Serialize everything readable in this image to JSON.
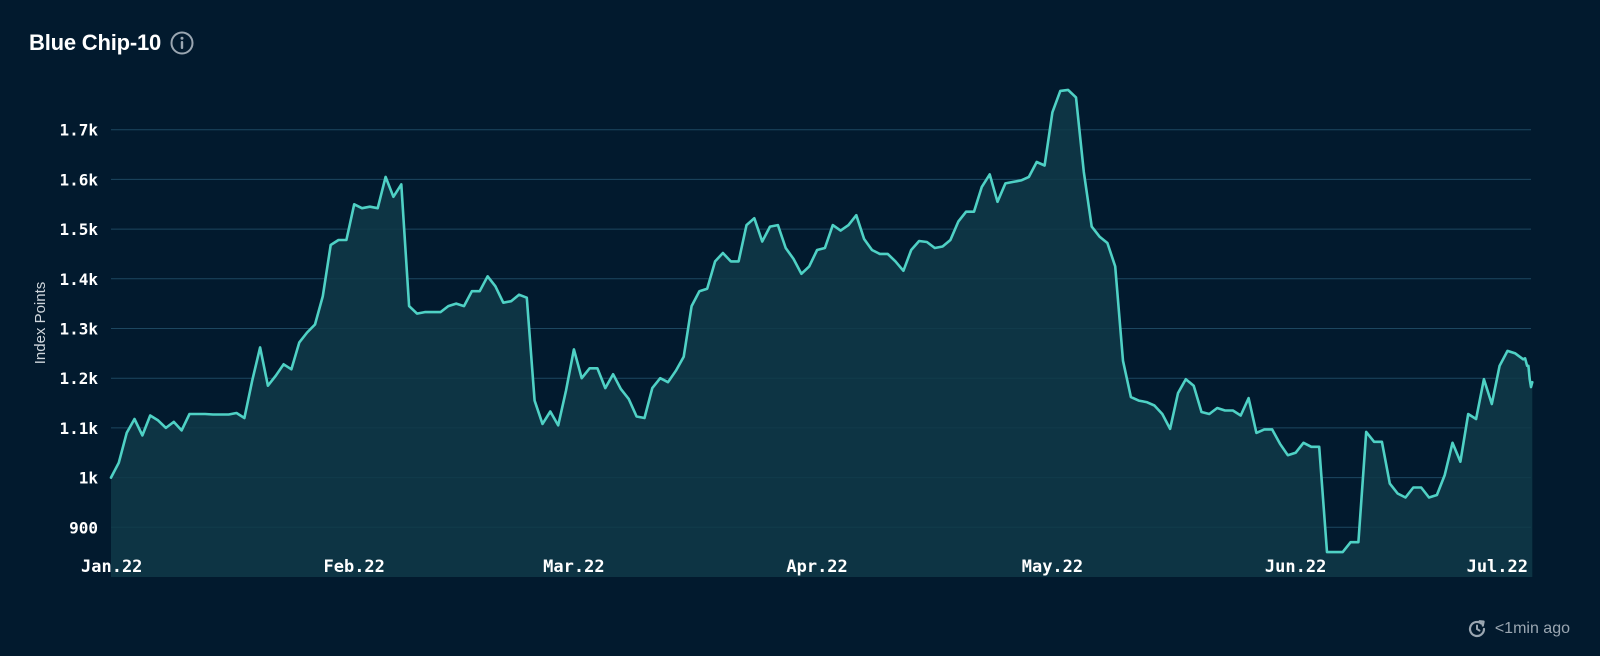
{
  "header": {
    "title": "Blue Chip-10",
    "info_icon": "info-icon"
  },
  "footer": {
    "refresh_icon": "refresh-icon",
    "updated": "<1min ago"
  },
  "colors": {
    "background": "#021a2e",
    "line": "#4fd1c5",
    "area": "#0f3a48",
    "grid": "#1d4760"
  },
  "chart_data": {
    "type": "area",
    "title": "Blue Chip-10",
    "xlabel": "",
    "ylabel": "Index Points",
    "ylim": [
      800,
      1800
    ],
    "yticks": [
      900,
      1000,
      1100,
      1200,
      1300,
      1400,
      1500,
      1600,
      1700
    ],
    "ytick_labels": [
      "900",
      "1k",
      "1.1k",
      "1.2k",
      "1.3k",
      "1.4k",
      "1.5k",
      "1.6k",
      "1.7k"
    ],
    "xlim": [
      "2022-01-01",
      "2022-07-01"
    ],
    "xticks": [
      "2022-01-01",
      "2022-02-01",
      "2022-03-01",
      "2022-04-01",
      "2022-05-01",
      "2022-06-01",
      "2022-07-01"
    ],
    "xtick_labels": [
      "Jan.22",
      "Feb.22",
      "Mar.22",
      "Apr.22",
      "May.22",
      "Jun.22",
      "Jul.22"
    ],
    "grid": true,
    "series": [
      {
        "values": [
          [
            "2022-01-01",
            1000
          ],
          [
            "2022-01-02",
            1030
          ],
          [
            "2022-01-03",
            1090
          ],
          [
            "2022-01-04",
            1118
          ],
          [
            "2022-01-05",
            1085
          ],
          [
            "2022-01-06",
            1125
          ],
          [
            "2022-01-07",
            1115
          ],
          [
            "2022-01-08",
            1100
          ],
          [
            "2022-01-09",
            1112
          ],
          [
            "2022-01-10",
            1095
          ],
          [
            "2022-01-11",
            1128
          ],
          [
            "2022-01-12",
            1128
          ],
          [
            "2022-01-13",
            1128
          ],
          [
            "2022-01-14",
            1127
          ],
          [
            "2022-01-15",
            1127
          ],
          [
            "2022-01-16",
            1127
          ],
          [
            "2022-01-17",
            1130
          ],
          [
            "2022-01-18",
            1120
          ],
          [
            "2022-01-19",
            1195
          ],
          [
            "2022-01-20",
            1262
          ],
          [
            "2022-01-21",
            1185
          ],
          [
            "2022-01-22",
            1205
          ],
          [
            "2022-01-23",
            1228
          ],
          [
            "2022-01-24",
            1218
          ],
          [
            "2022-01-25",
            1272
          ],
          [
            "2022-01-26",
            1292
          ],
          [
            "2022-01-27",
            1308
          ],
          [
            "2022-01-28",
            1365
          ],
          [
            "2022-01-29",
            1468
          ],
          [
            "2022-01-30",
            1478
          ],
          [
            "2022-01-31",
            1478
          ],
          [
            "2022-02-01",
            1550
          ],
          [
            "2022-02-02",
            1542
          ],
          [
            "2022-02-03",
            1545
          ],
          [
            "2022-02-04",
            1542
          ],
          [
            "2022-02-05",
            1605
          ],
          [
            "2022-02-06",
            1565
          ],
          [
            "2022-02-07",
            1590
          ],
          [
            "2022-02-08",
            1345
          ],
          [
            "2022-02-09",
            1330
          ],
          [
            "2022-02-10",
            1333
          ],
          [
            "2022-02-11",
            1333
          ],
          [
            "2022-02-12",
            1333
          ],
          [
            "2022-02-13",
            1345
          ],
          [
            "2022-02-14",
            1350
          ],
          [
            "2022-02-15",
            1345
          ],
          [
            "2022-02-16",
            1375
          ],
          [
            "2022-02-17",
            1375
          ],
          [
            "2022-02-18",
            1405
          ],
          [
            "2022-02-19",
            1385
          ],
          [
            "2022-02-20",
            1352
          ],
          [
            "2022-02-21",
            1355
          ],
          [
            "2022-02-22",
            1368
          ],
          [
            "2022-02-23",
            1362
          ],
          [
            "2022-02-24",
            1155
          ],
          [
            "2022-02-25",
            1108
          ],
          [
            "2022-02-26",
            1133
          ],
          [
            "2022-02-27",
            1105
          ],
          [
            "2022-02-28",
            1175
          ],
          [
            "2022-03-01",
            1258
          ],
          [
            "2022-03-02",
            1200
          ],
          [
            "2022-03-03",
            1220
          ],
          [
            "2022-03-04",
            1220
          ],
          [
            "2022-03-05",
            1180
          ],
          [
            "2022-03-06",
            1208
          ],
          [
            "2022-03-07",
            1178
          ],
          [
            "2022-03-08",
            1158
          ],
          [
            "2022-03-09",
            1123
          ],
          [
            "2022-03-10",
            1120
          ],
          [
            "2022-03-11",
            1180
          ],
          [
            "2022-03-12",
            1200
          ],
          [
            "2022-03-13",
            1192
          ],
          [
            "2022-03-14",
            1215
          ],
          [
            "2022-03-15",
            1243
          ],
          [
            "2022-03-16",
            1345
          ],
          [
            "2022-03-17",
            1375
          ],
          [
            "2022-03-18",
            1380
          ],
          [
            "2022-03-19",
            1435
          ],
          [
            "2022-03-20",
            1452
          ],
          [
            "2022-03-21",
            1435
          ],
          [
            "2022-03-22",
            1435
          ],
          [
            "2022-03-23",
            1508
          ],
          [
            "2022-03-24",
            1522
          ],
          [
            "2022-03-25",
            1475
          ],
          [
            "2022-03-26",
            1505
          ],
          [
            "2022-03-27",
            1508
          ],
          [
            "2022-03-28",
            1462
          ],
          [
            "2022-03-29",
            1440
          ],
          [
            "2022-03-30",
            1410
          ],
          [
            "2022-03-31",
            1425
          ],
          [
            "2022-04-01",
            1458
          ],
          [
            "2022-04-02",
            1462
          ],
          [
            "2022-04-03",
            1508
          ],
          [
            "2022-04-04",
            1497
          ],
          [
            "2022-04-05",
            1508
          ],
          [
            "2022-04-06",
            1528
          ],
          [
            "2022-04-07",
            1480
          ],
          [
            "2022-04-08",
            1458
          ],
          [
            "2022-04-09",
            1450
          ],
          [
            "2022-04-10",
            1450
          ],
          [
            "2022-04-11",
            1435
          ],
          [
            "2022-04-12",
            1416
          ],
          [
            "2022-04-13",
            1458
          ],
          [
            "2022-04-14",
            1476
          ],
          [
            "2022-04-15",
            1474
          ],
          [
            "2022-04-16",
            1462
          ],
          [
            "2022-04-17",
            1465
          ],
          [
            "2022-04-18",
            1478
          ],
          [
            "2022-04-19",
            1515
          ],
          [
            "2022-04-20",
            1535
          ],
          [
            "2022-04-21",
            1535
          ],
          [
            "2022-04-22",
            1585
          ],
          [
            "2022-04-23",
            1610
          ],
          [
            "2022-04-24",
            1555
          ],
          [
            "2022-04-25",
            1592
          ],
          [
            "2022-04-26",
            1595
          ],
          [
            "2022-04-27",
            1598
          ],
          [
            "2022-04-28",
            1605
          ],
          [
            "2022-04-29",
            1635
          ],
          [
            "2022-04-30",
            1628
          ],
          [
            "2022-05-01",
            1735
          ],
          [
            "2022-05-02",
            1778
          ],
          [
            "2022-05-03",
            1780
          ],
          [
            "2022-05-04",
            1765
          ],
          [
            "2022-05-05",
            1615
          ],
          [
            "2022-05-06",
            1505
          ],
          [
            "2022-05-07",
            1485
          ],
          [
            "2022-05-08",
            1472
          ],
          [
            "2022-05-09",
            1425
          ],
          [
            "2022-05-10",
            1235
          ],
          [
            "2022-05-11",
            1162
          ],
          [
            "2022-05-12",
            1155
          ],
          [
            "2022-05-13",
            1152
          ],
          [
            "2022-05-14",
            1145
          ],
          [
            "2022-05-15",
            1128
          ],
          [
            "2022-05-16",
            1098
          ],
          [
            "2022-05-17",
            1170
          ],
          [
            "2022-05-18",
            1198
          ],
          [
            "2022-05-19",
            1185
          ],
          [
            "2022-05-20",
            1132
          ],
          [
            "2022-05-21",
            1128
          ],
          [
            "2022-05-22",
            1140
          ],
          [
            "2022-05-23",
            1135
          ],
          [
            "2022-05-24",
            1135
          ],
          [
            "2022-05-25",
            1125
          ],
          [
            "2022-05-26",
            1160
          ],
          [
            "2022-05-27",
            1090
          ],
          [
            "2022-05-28",
            1097
          ],
          [
            "2022-05-29",
            1097
          ],
          [
            "2022-05-30",
            1068
          ],
          [
            "2022-05-31",
            1045
          ],
          [
            "2022-06-01",
            1050
          ],
          [
            "2022-06-02",
            1070
          ],
          [
            "2022-06-03",
            1062
          ],
          [
            "2022-06-04",
            1062
          ],
          [
            "2022-06-05",
            850
          ],
          [
            "2022-06-06",
            850
          ],
          [
            "2022-06-07",
            850
          ],
          [
            "2022-06-08",
            870
          ],
          [
            "2022-06-09",
            870
          ],
          [
            "2022-06-10",
            1092
          ],
          [
            "2022-06-11",
            1072
          ],
          [
            "2022-06-12",
            1072
          ],
          [
            "2022-06-13",
            988
          ],
          [
            "2022-06-14",
            968
          ],
          [
            "2022-06-15",
            960
          ],
          [
            "2022-06-16",
            980
          ],
          [
            "2022-06-17",
            980
          ],
          [
            "2022-06-18",
            960
          ],
          [
            "2022-06-19",
            965
          ],
          [
            "2022-06-20",
            1005
          ],
          [
            "2022-06-21",
            1070
          ],
          [
            "2022-06-22",
            1032
          ],
          [
            "2022-06-23",
            1128
          ],
          [
            "2022-06-24",
            1118
          ],
          [
            "2022-06-25",
            1198
          ],
          [
            "2022-06-26",
            1148
          ],
          [
            "2022-06-27",
            1225
          ],
          [
            "2022-06-28",
            1255
          ],
          [
            "2022-06-29",
            1250
          ],
          [
            "2022-06-30",
            1238
          ],
          [
            "2022-06-30T06:00",
            1240
          ],
          [
            "2022-06-30T12:00",
            1225
          ],
          [
            "2022-06-30T16:00",
            1225
          ],
          [
            "2022-06-30T20:00",
            1198
          ],
          [
            "2022-07-01T00:00",
            1182
          ],
          [
            "2022-07-01T04:00",
            1192
          ]
        ]
      }
    ]
  }
}
